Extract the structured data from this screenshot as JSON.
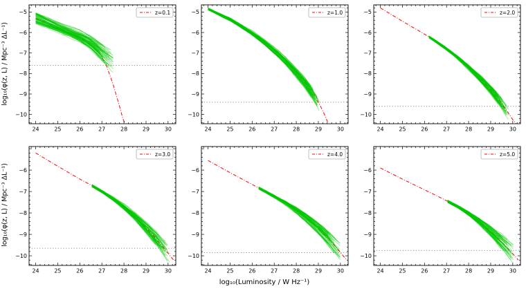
{
  "figure": {
    "xlabel": "log₁₀(Luminosity / W Hz⁻¹)",
    "ylabel": "log₁₀(φ(z, L) / Mpc⁻³ ΔL⁻¹)",
    "background": "#ffffff",
    "rows": 2,
    "cols": 3
  },
  "styles": {
    "ensemble_color": "#00c800",
    "model_color": "#ff0000",
    "limit_color": "#808080",
    "axis_color": "#000000",
    "legend_border": "#b0b0b0"
  },
  "chart_data": [
    {
      "id": "z0.1",
      "type": "line",
      "legend_label": "z=0.1",
      "xlim": [
        23.7,
        30.35
      ],
      "ylim": [
        -10.45,
        -4.65
      ],
      "xticks": [
        24,
        25,
        26,
        27,
        28,
        29,
        30
      ],
      "yticks": [
        -5,
        -6,
        -7,
        -8,
        -9,
        -10
      ],
      "limit_line_y": -7.6,
      "model_line": {
        "x": [
          24,
          24.5,
          25,
          25.5,
          26,
          26.5,
          26.9,
          27.2,
          27.5,
          27.8,
          27.95,
          28.05
        ],
        "y": [
          -5.3,
          -5.5,
          -5.75,
          -6.0,
          -6.25,
          -6.6,
          -7.0,
          -7.6,
          -8.5,
          -9.6,
          -10.2,
          -10.45
        ]
      },
      "ensemble": {
        "n_curves": 70,
        "seed": 101,
        "x_start": 24,
        "end_x_range": [
          26.85,
          27.6
        ],
        "spread_start": 0.28,
        "spread_end": 0.5,
        "median_x": [
          24,
          25,
          26,
          26.5,
          27,
          27.5,
          28
        ],
        "median_y": [
          -5.3,
          -5.75,
          -6.2,
          -6.5,
          -6.95,
          -7.4,
          -7.85
        ]
      }
    },
    {
      "id": "z1.0",
      "type": "line",
      "legend_label": "z=1.0",
      "xlim": [
        23.7,
        30.35
      ],
      "ylim": [
        -10.45,
        -4.65
      ],
      "xticks": [
        24,
        25,
        26,
        27,
        28,
        29,
        30
      ],
      "yticks": [
        -5,
        -6,
        -7,
        -8,
        -9,
        -10
      ],
      "limit_line_y": -9.4,
      "model_line": {
        "x": [
          24,
          24.5,
          25,
          25.5,
          26,
          26.5,
          27,
          27.5,
          28,
          28.4,
          28.8,
          29.1,
          29.3,
          29.45
        ],
        "y": [
          -4.85,
          -5.08,
          -5.35,
          -5.67,
          -6.02,
          -6.42,
          -6.87,
          -7.37,
          -7.95,
          -8.45,
          -9.05,
          -9.6,
          -10.05,
          -10.45
        ]
      },
      "ensemble": {
        "n_curves": 60,
        "seed": 202,
        "x_start": 24,
        "end_x_range": [
          28.65,
          29.05
        ],
        "spread_start": 0.05,
        "spread_end": 0.28,
        "median_x": [
          24,
          25,
          26,
          26.5,
          27,
          27.5,
          28,
          28.4,
          28.8,
          29.1
        ],
        "median_y": [
          -4.85,
          -5.35,
          -6.02,
          -6.42,
          -6.87,
          -7.37,
          -7.95,
          -8.45,
          -9.05,
          -9.6
        ]
      }
    },
    {
      "id": "z2.0",
      "type": "line",
      "legend_label": "z=2.0",
      "xlim": [
        23.7,
        30.35
      ],
      "ylim": [
        -10.45,
        -4.65
      ],
      "xticks": [
        24,
        25,
        26,
        27,
        28,
        29,
        30
      ],
      "yticks": [
        -5,
        -6,
        -7,
        -8,
        -9,
        -10
      ],
      "limit_line_y": -9.6,
      "model_line": {
        "x": [
          24,
          25,
          26,
          26.5,
          27,
          27.5,
          28,
          28.5,
          29,
          29.4,
          29.75,
          30.0,
          30.15
        ],
        "y": [
          -4.8,
          -5.45,
          -6.08,
          -6.42,
          -6.8,
          -7.22,
          -7.7,
          -8.22,
          -8.8,
          -9.32,
          -9.85,
          -10.25,
          -10.45
        ]
      },
      "ensemble": {
        "n_curves": 60,
        "seed": 303,
        "x_start": 26.2,
        "end_x_range": [
          29.3,
          29.85
        ],
        "spread_start": 0.05,
        "spread_end": 0.32,
        "median_x": [
          26,
          26.5,
          27,
          27.5,
          28,
          28.5,
          29,
          29.4,
          29.75
        ],
        "median_y": [
          -6.08,
          -6.42,
          -6.8,
          -7.22,
          -7.7,
          -8.22,
          -8.8,
          -9.32,
          -9.85
        ]
      }
    },
    {
      "id": "z3.0",
      "type": "line",
      "legend_label": "z=3.0",
      "xlim": [
        23.7,
        30.35
      ],
      "ylim": [
        -10.45,
        -4.9
      ],
      "xticks": [
        24,
        25,
        26,
        27,
        28,
        29,
        30
      ],
      "yticks": [
        -6,
        -7,
        -8,
        -9,
        -10
      ],
      "limit_line_y": -9.65,
      "model_line": {
        "x": [
          24,
          25,
          26,
          26.5,
          27,
          27.5,
          28,
          28.5,
          29,
          29.5,
          30,
          30.25
        ],
        "y": [
          -5.2,
          -5.82,
          -6.42,
          -6.7,
          -7.0,
          -7.33,
          -7.72,
          -8.17,
          -8.68,
          -9.25,
          -9.88,
          -10.2
        ]
      },
      "ensemble": {
        "n_curves": 60,
        "seed": 404,
        "x_start": 26.55,
        "end_x_range": [
          29.45,
          30.1
        ],
        "spread_start": 0.06,
        "spread_end": 0.42,
        "median_x": [
          26.5,
          27,
          27.5,
          28,
          28.5,
          29,
          29.5,
          30
        ],
        "median_y": [
          -6.7,
          -7.0,
          -7.33,
          -7.72,
          -8.17,
          -8.68,
          -9.25,
          -9.88
        ]
      }
    },
    {
      "id": "z4.0",
      "type": "line",
      "legend_label": "z=4.0",
      "xlim": [
        23.7,
        30.35
      ],
      "ylim": [
        -10.45,
        -4.9
      ],
      "xticks": [
        24,
        25,
        26,
        27,
        28,
        29,
        30
      ],
      "yticks": [
        -6,
        -7,
        -8,
        -9,
        -10
      ],
      "limit_line_y": -9.85,
      "model_line": {
        "x": [
          24,
          25,
          26,
          26.5,
          27,
          27.5,
          28,
          28.5,
          29,
          29.5,
          30,
          30.25
        ],
        "y": [
          -5.55,
          -6.12,
          -6.67,
          -6.95,
          -7.23,
          -7.53,
          -7.88,
          -8.28,
          -8.74,
          -9.26,
          -9.85,
          -10.15
        ]
      },
      "ensemble": {
        "n_curves": 60,
        "seed": 505,
        "x_start": 26.3,
        "end_x_range": [
          29.45,
          30.1
        ],
        "spread_start": 0.06,
        "spread_end": 0.45,
        "median_x": [
          26,
          26.5,
          27,
          27.5,
          28,
          28.5,
          29,
          29.5,
          30
        ],
        "median_y": [
          -6.67,
          -6.95,
          -7.23,
          -7.53,
          -7.88,
          -8.28,
          -8.74,
          -9.26,
          -9.85
        ]
      }
    },
    {
      "id": "z5.0",
      "type": "line",
      "legend_label": "z=5.0",
      "xlim": [
        23.7,
        30.35
      ],
      "ylim": [
        -10.45,
        -4.9
      ],
      "xticks": [
        24,
        25,
        26,
        27,
        28,
        29,
        30
      ],
      "yticks": [
        -6,
        -7,
        -8,
        -9,
        -10
      ],
      "limit_line_y": -9.75,
      "model_line": {
        "x": [
          24,
          25,
          26,
          26.5,
          27,
          27.5,
          28,
          28.5,
          29,
          29.5,
          30,
          30.25
        ],
        "y": [
          -5.9,
          -6.42,
          -6.92,
          -7.17,
          -7.43,
          -7.7,
          -8.02,
          -8.4,
          -8.85,
          -9.35,
          -9.9,
          -10.2
        ]
      },
      "ensemble": {
        "n_curves": 60,
        "seed": 606,
        "x_start": 27.05,
        "end_x_range": [
          29.45,
          30.1
        ],
        "spread_start": 0.06,
        "spread_end": 0.45,
        "median_x": [
          27,
          27.5,
          28,
          28.5,
          29,
          29.5,
          30
        ],
        "median_y": [
          -7.43,
          -7.7,
          -8.02,
          -8.4,
          -8.85,
          -9.35,
          -9.9
        ]
      }
    }
  ]
}
